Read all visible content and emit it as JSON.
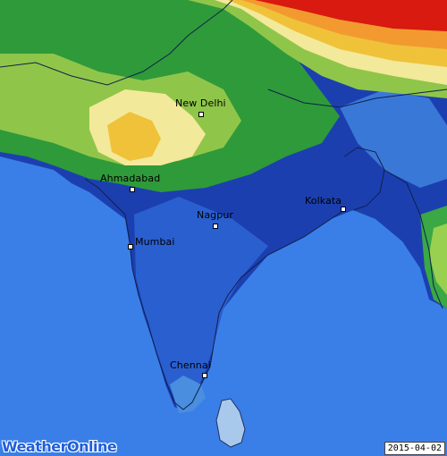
{
  "map": {
    "date": "2015-04-02",
    "logo_text": "WeatherOnline",
    "cities": [
      {
        "name": "New Delhi"
      },
      {
        "name": "Ahmadabad"
      },
      {
        "name": "Kolkata"
      },
      {
        "name": "Nagpur"
      },
      {
        "name": "Mumbai"
      },
      {
        "name": "Chennai"
      }
    ],
    "colors": {
      "ocean": "#3a7fe8",
      "dark_blue": "#1a3aa8",
      "mid_blue": "#2255c8",
      "light_blue": "#4a8ee0",
      "green": "#2f9a3a",
      "light_green": "#8fc64a",
      "pale_yellow": "#f3e99a",
      "yellow": "#f0c23a",
      "orange": "#f29a30",
      "red": "#d81a10"
    }
  }
}
